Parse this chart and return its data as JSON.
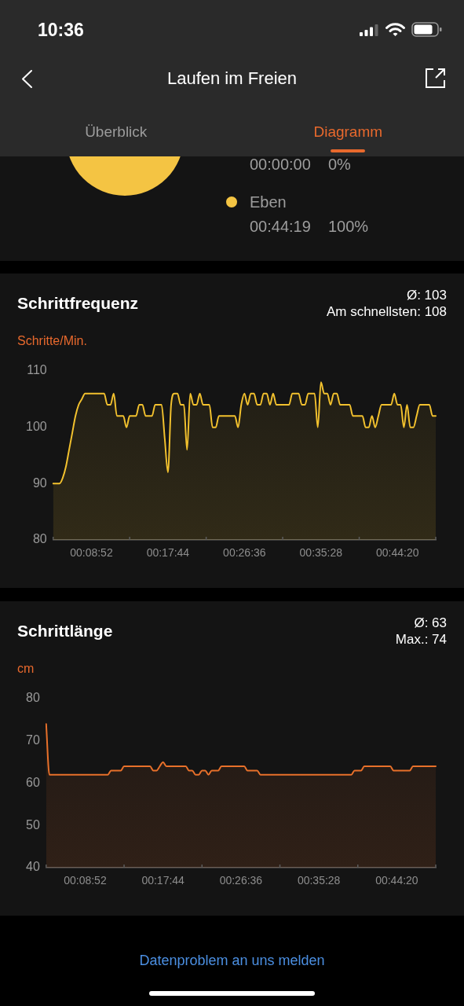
{
  "chart_data": [
    {
      "type": "other",
      "title": "Laufen im Freien",
      "annotations": [
        "10:36",
        "Überblick",
        "Diagramm"
      ]
    },
    {
      "type": "pie",
      "categories": [
        null,
        "Eben"
      ],
      "values": [
        0,
        100
      ],
      "colors": [
        null,
        "#f4c443"
      ],
      "annotations": [
        "00:00:00",
        "0%",
        "00:44:19",
        "100%"
      ],
      "legend": "right"
    },
    {
      "type": "area",
      "title": "Schrittfrequenz",
      "ylabel": "Schritte/Min.",
      "annotations": [
        "Ø: 103",
        "Am schnellsten: 108"
      ],
      "categories": [
        null,
        null,
        null,
        null,
        null,
        null,
        null,
        null,
        null,
        null,
        null,
        null,
        "00:08:52",
        null,
        null,
        null,
        null,
        null,
        null,
        null,
        null,
        null,
        null,
        null,
        null,
        null,
        null,
        null,
        null,
        null,
        null,
        null,
        null,
        null,
        null,
        null,
        "00:17:44",
        null,
        null,
        null,
        null,
        null,
        null,
        null,
        null,
        null,
        null,
        null,
        null,
        null,
        null,
        null,
        null,
        null,
        null,
        null,
        null,
        null,
        null,
        null,
        "00:26:36",
        null,
        null,
        null,
        null,
        null,
        null,
        null,
        null,
        null,
        null,
        null,
        null,
        null,
        null,
        null,
        null,
        null,
        null,
        null,
        null,
        null,
        null,
        null,
        "00:35:28",
        null,
        null,
        null,
        null,
        null,
        null,
        null,
        null,
        null,
        null,
        null,
        null,
        null,
        null,
        null,
        null,
        null,
        null,
        null,
        null,
        null,
        null,
        null,
        "00:44:20",
        null,
        null,
        null,
        null,
        null,
        null,
        null,
        null,
        null,
        null,
        null,
        null
      ],
      "series": [
        {
          "color": "#f2c12e",
          "values": [
            90,
            90,
            90,
            91,
            93,
            96,
            99,
            102,
            104,
            105,
            106,
            106,
            106,
            106,
            106,
            106,
            106,
            104,
            104,
            106,
            102,
            102,
            102,
            100,
            102,
            102,
            102,
            104,
            104,
            102,
            102,
            102,
            104,
            104,
            104,
            98,
            92,
            104,
            106,
            106,
            104,
            104,
            96,
            106,
            104,
            104,
            106,
            104,
            104,
            104,
            100,
            100,
            102,
            102,
            102,
            102,
            102,
            102,
            100,
            104,
            106,
            104,
            106,
            106,
            104,
            104,
            106,
            106,
            104,
            106,
            104,
            104,
            104,
            104,
            104,
            106,
            106,
            106,
            104,
            104,
            106,
            106,
            106,
            100,
            108,
            106,
            106,
            104,
            106,
            106,
            104,
            104,
            104,
            104,
            102,
            102,
            102,
            102,
            100,
            100,
            102,
            100,
            102,
            104,
            104,
            104,
            104,
            106,
            104,
            104,
            100,
            104,
            100,
            100,
            102,
            104,
            104,
            104,
            104,
            102,
            102
          ]
        }
      ],
      "ylim": [
        80,
        110
      ],
      "yticks": [
        80,
        90,
        100,
        110
      ],
      "grid": false,
      "legend": false
    },
    {
      "type": "area",
      "title": "Schrittlänge",
      "ylabel": "cm",
      "annotations": [
        "Ø: 63",
        "Max.: 74",
        "Datenproblem an uns melden"
      ],
      "categories": [
        null,
        null,
        null,
        null,
        null,
        null,
        null,
        null,
        null,
        null,
        null,
        null,
        "00:08:52",
        null,
        null,
        null,
        null,
        null,
        null,
        null,
        null,
        null,
        null,
        null,
        null,
        null,
        null,
        null,
        null,
        null,
        null,
        null,
        null,
        null,
        null,
        null,
        "00:17:44",
        null,
        null,
        null,
        null,
        null,
        null,
        null,
        null,
        null,
        null,
        null,
        null,
        null,
        null,
        null,
        null,
        null,
        null,
        null,
        null,
        null,
        null,
        null,
        "00:26:36",
        null,
        null,
        null,
        null,
        null,
        null,
        null,
        null,
        null,
        null,
        null,
        null,
        null,
        null,
        null,
        null,
        null,
        null,
        null,
        null,
        null,
        null,
        null,
        "00:35:28",
        null,
        null,
        null,
        null,
        null,
        null,
        null,
        null,
        null,
        null,
        null,
        null,
        null,
        null,
        null,
        null,
        null,
        null,
        null,
        null,
        null,
        null,
        null,
        "00:44:20",
        null,
        null,
        null,
        null,
        null,
        null,
        null,
        null,
        null,
        null,
        null,
        null
      ],
      "series": [
        {
          "color": "#e8702a",
          "values": [
            74,
            62,
            62,
            62,
            62,
            62,
            62,
            62,
            62,
            62,
            62,
            62,
            62,
            62,
            62,
            62,
            62,
            62,
            62,
            62,
            63,
            63,
            63,
            63,
            64,
            64,
            64,
            64,
            64,
            64,
            64,
            64,
            64,
            63,
            63,
            64,
            65,
            64,
            64,
            64,
            64,
            64,
            64,
            64,
            63,
            63,
            62,
            62,
            63,
            63,
            62,
            63,
            63,
            63,
            64,
            64,
            64,
            64,
            64,
            64,
            64,
            64,
            63,
            63,
            63,
            63,
            62,
            62,
            62,
            62,
            62,
            62,
            62,
            62,
            62,
            62,
            62,
            62,
            62,
            62,
            62,
            62,
            62,
            62,
            62,
            62,
            62,
            62,
            62,
            62,
            62,
            62,
            62,
            62,
            62,
            63,
            63,
            63,
            64,
            64,
            64,
            64,
            64,
            64,
            64,
            64,
            64,
            63,
            63,
            63,
            63,
            63,
            63,
            64,
            64,
            64,
            64,
            64,
            64,
            64,
            64
          ]
        }
      ],
      "ylim": [
        40,
        80
      ],
      "yticks": [
        40,
        50,
        60,
        70,
        80
      ],
      "grid": false,
      "legend": false
    }
  ]
}
